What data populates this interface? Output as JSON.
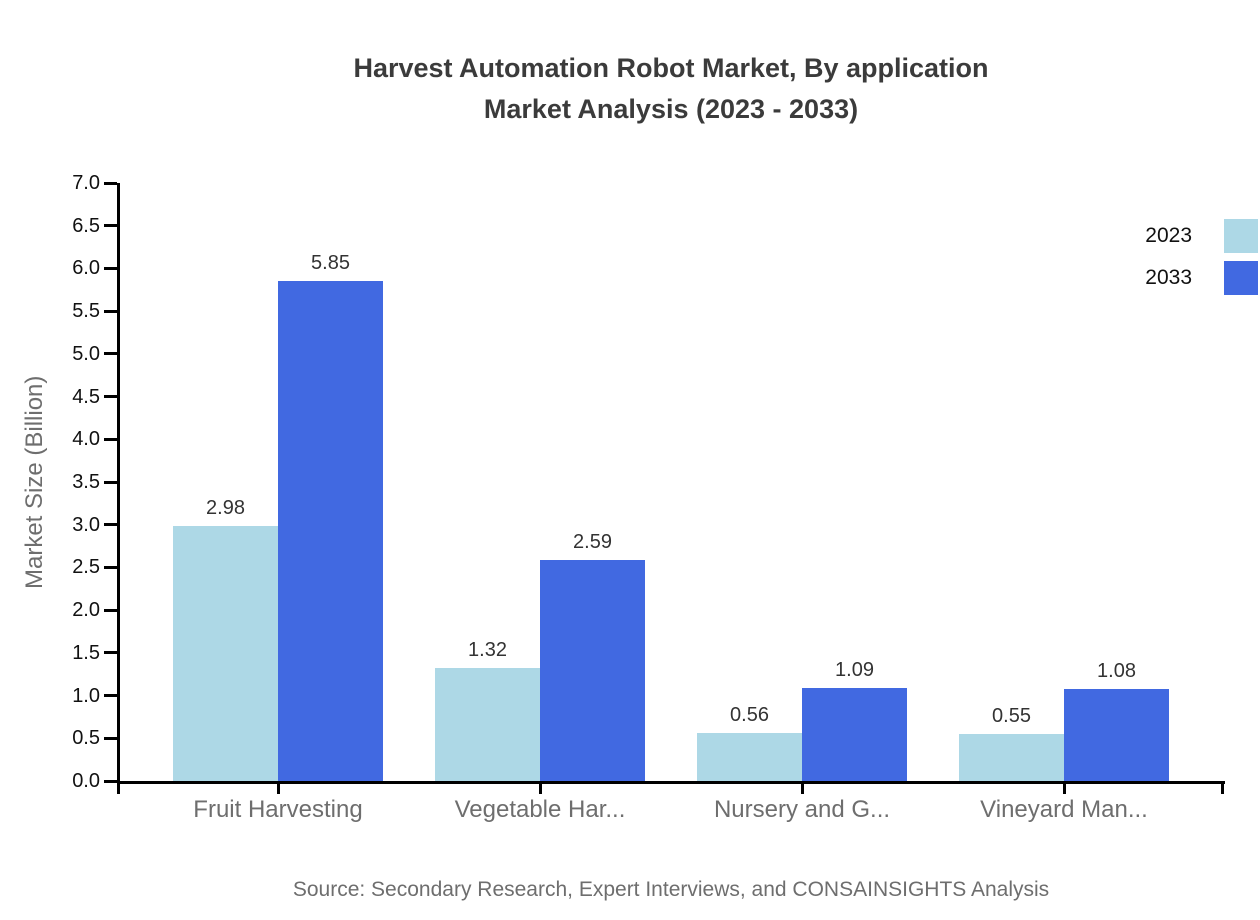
{
  "title": {
    "line1": "Harvest Automation Robot Market, By application",
    "line2": "Market Analysis (2023 - 2033)"
  },
  "source": "Source: Secondary Research, Expert Interviews, and CONSAINSIGHTS Analysis",
  "colors": {
    "series_2023": "#ADD8E6",
    "series_2033": "#4169E1",
    "axis": "#000000",
    "title_text": "#3b3b3b",
    "muted_text": "#6e6e6e",
    "value_text": "#333333"
  },
  "chart_data": {
    "type": "bar",
    "title": "Harvest Automation Robot Market, By application Market Analysis (2023 - 2033)",
    "categories": [
      "Fruit Harvesting",
      "Vegetable Har...",
      "Nursery and G...",
      "Vineyard Man..."
    ],
    "series": [
      {
        "name": "2023",
        "color": "#ADD8E6",
        "values": [
          2.98,
          1.32,
          0.56,
          0.55
        ]
      },
      {
        "name": "2033",
        "color": "#4169E1",
        "values": [
          5.85,
          2.59,
          1.09,
          1.08
        ]
      }
    ],
    "xlabel": "",
    "ylabel": "Market Size (Billion)",
    "ylim": [
      0,
      7
    ],
    "ytick_step": 0.5,
    "grid": false,
    "legend_position": "top-right",
    "value_labels": true
  },
  "legend": {
    "items": [
      {
        "label": "2023",
        "color": "#ADD8E6"
      },
      {
        "label": "2033",
        "color": "#4169E1"
      }
    ]
  }
}
